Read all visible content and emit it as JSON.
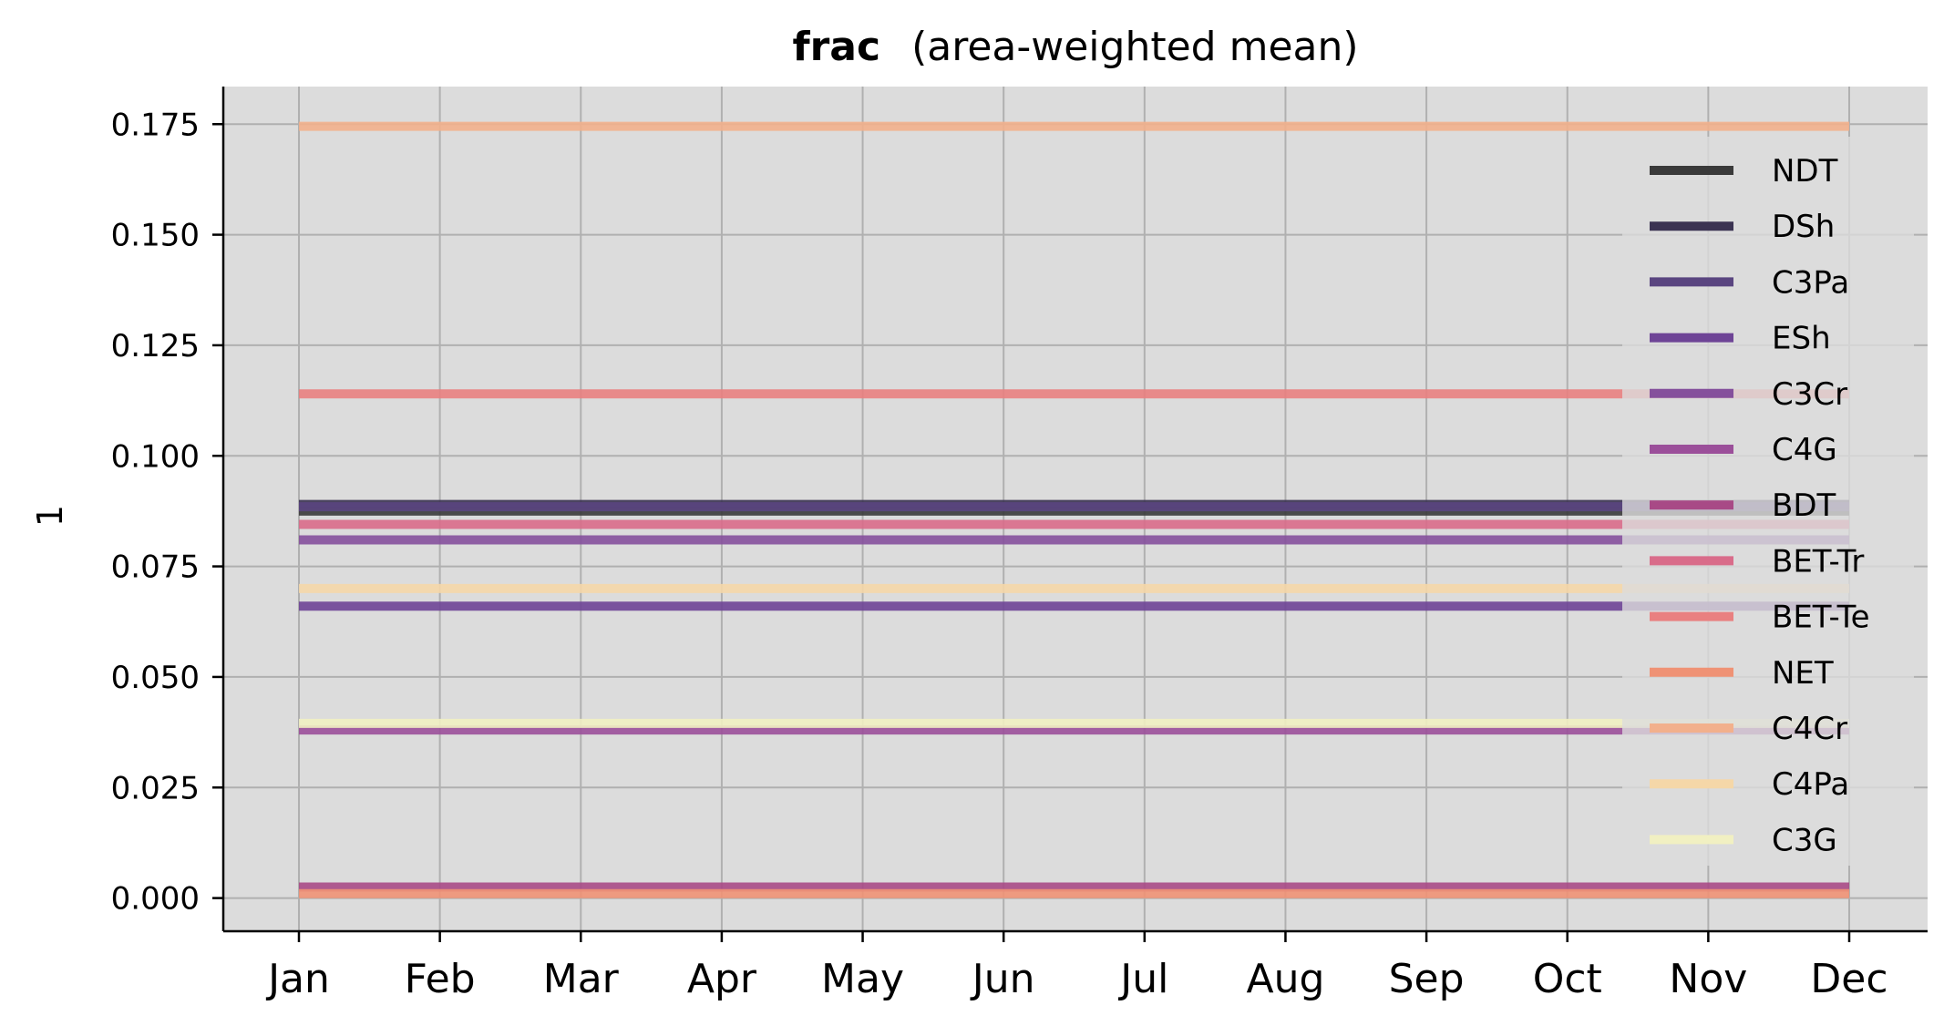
{
  "chart_data": {
    "type": "line",
    "title_bold": "frac",
    "title_rest": "(area-weighted mean)",
    "xlabel": "",
    "ylabel": "1",
    "categories": [
      "Jan",
      "Feb",
      "Mar",
      "Apr",
      "May",
      "Jun",
      "Jul",
      "Aug",
      "Sep",
      "Oct",
      "Nov",
      "Dec"
    ],
    "ylim": [
      -0.0075,
      0.1835
    ],
    "yticks": [
      0.0,
      0.025,
      0.05,
      0.075,
      0.1,
      0.125,
      0.15,
      0.175
    ],
    "ytick_labels": [
      "0.000",
      "0.025",
      "0.050",
      "0.075",
      "0.100",
      "0.125",
      "0.150",
      "0.175"
    ],
    "grid": true,
    "legend_position": "right",
    "series": [
      {
        "name": "NDT",
        "color": "#3a3a3a",
        "values": [
          0.0875,
          0.0875,
          0.0875,
          0.0875,
          0.0875,
          0.0875,
          0.0875,
          0.0875,
          0.0875,
          0.0875,
          0.0875,
          0.0875
        ]
      },
      {
        "name": "DSh",
        "color": "#3b3352",
        "values": [
          0.089,
          0.089,
          0.089,
          0.089,
          0.089,
          0.089,
          0.089,
          0.089,
          0.089,
          0.089,
          0.089,
          0.089
        ]
      },
      {
        "name": "C3Pa",
        "color": "#5a4580",
        "values": [
          0.0885,
          0.0885,
          0.0885,
          0.0885,
          0.0885,
          0.0885,
          0.0885,
          0.0885,
          0.0885,
          0.0885,
          0.0885,
          0.0885
        ]
      },
      {
        "name": "ESh",
        "color": "#6e4496",
        "values": [
          0.066,
          0.066,
          0.066,
          0.066,
          0.066,
          0.066,
          0.066,
          0.066,
          0.066,
          0.066,
          0.066,
          0.066
        ]
      },
      {
        "name": "C3Cr",
        "color": "#85509c",
        "values": [
          0.081,
          0.081,
          0.081,
          0.081,
          0.081,
          0.081,
          0.081,
          0.081,
          0.081,
          0.081,
          0.081,
          0.081
        ]
      },
      {
        "name": "C4G",
        "color": "#9b4f9a",
        "values": [
          0.038,
          0.038,
          0.038,
          0.038,
          0.038,
          0.038,
          0.038,
          0.038,
          0.038,
          0.038,
          0.038,
          0.038
        ]
      },
      {
        "name": "BDT",
        "color": "#a84a86",
        "values": [
          0.0025,
          0.0025,
          0.0025,
          0.0025,
          0.0025,
          0.0025,
          0.0025,
          0.0025,
          0.0025,
          0.0025,
          0.0025,
          0.0025
        ]
      },
      {
        "name": "BET-Tr",
        "color": "#d96c8a",
        "values": [
          0.0845,
          0.0845,
          0.0845,
          0.0845,
          0.0845,
          0.0845,
          0.0845,
          0.0845,
          0.0845,
          0.0845,
          0.0845,
          0.0845
        ]
      },
      {
        "name": "BET-Te",
        "color": "#e98080",
        "values": [
          0.114,
          0.114,
          0.114,
          0.114,
          0.114,
          0.114,
          0.114,
          0.114,
          0.114,
          0.114,
          0.114,
          0.114
        ]
      },
      {
        "name": "NET",
        "color": "#ef9275",
        "values": [
          0.001,
          0.001,
          0.001,
          0.001,
          0.001,
          0.001,
          0.001,
          0.001,
          0.001,
          0.001,
          0.001,
          0.001
        ]
      },
      {
        "name": "C4Cr",
        "color": "#f2b08c",
        "values": [
          0.1745,
          0.1745,
          0.1745,
          0.1745,
          0.1745,
          0.1745,
          0.1745,
          0.1745,
          0.1745,
          0.1745,
          0.1745,
          0.1745
        ]
      },
      {
        "name": "C4Pa",
        "color": "#f5d7a8",
        "values": [
          0.07,
          0.07,
          0.07,
          0.07,
          0.07,
          0.07,
          0.07,
          0.07,
          0.07,
          0.07,
          0.07,
          0.07
        ]
      },
      {
        "name": "C3G",
        "color": "#f1f0c2",
        "values": [
          0.0395,
          0.0395,
          0.0395,
          0.0395,
          0.0395,
          0.0395,
          0.0395,
          0.0395,
          0.0395,
          0.0395,
          0.0395,
          0.0395
        ]
      }
    ]
  }
}
